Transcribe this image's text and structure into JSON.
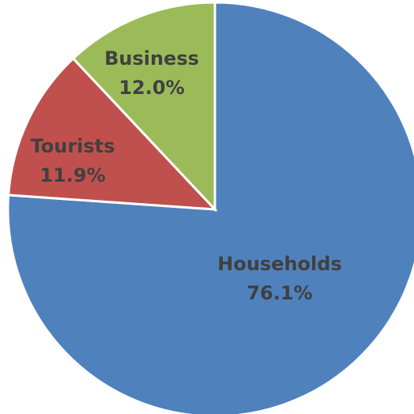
{
  "chart_data": {
    "type": "pie",
    "slices": [
      {
        "label": "Households",
        "percent_label": "76.1%",
        "value": 76.1,
        "color": "#4F81BD"
      },
      {
        "label": "Tourists",
        "percent_label": "11.9%",
        "value": 11.9,
        "color": "#C0504D"
      },
      {
        "label": "Business",
        "percent_label": "12.0%",
        "value": 12.0,
        "color": "#9BBB59"
      }
    ],
    "start_angle_deg": 0,
    "direction": "clockwise"
  }
}
